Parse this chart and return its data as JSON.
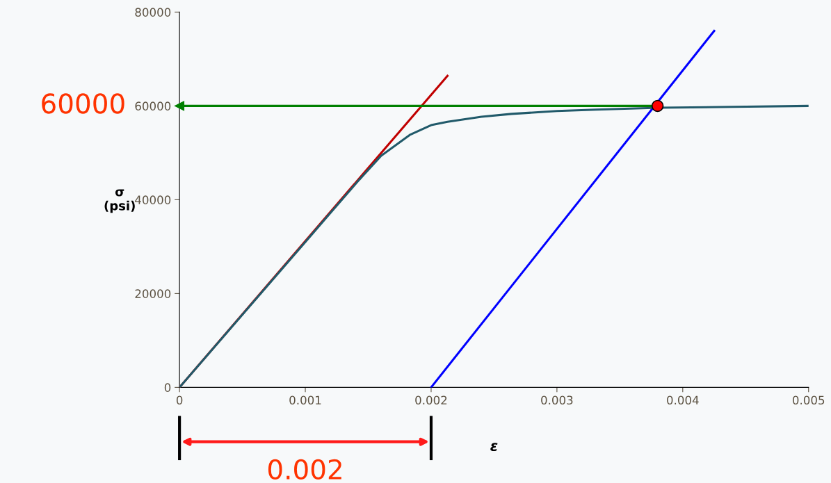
{
  "chart_data": {
    "type": "line",
    "xlabel": "ε",
    "ylabel": "σ\n(psi)",
    "xlim": [
      0,
      0.005
    ],
    "xticks": [
      0,
      0.001,
      0.002,
      0.003,
      0.004,
      0.005
    ],
    "ylim": [
      0,
      80000
    ],
    "yticks": [
      0,
      20000,
      40000,
      60000,
      80000
    ],
    "grid": false,
    "legend": false,
    "line_style": "solid",
    "series": [
      {
        "color": "#c00000",
        "marker": "none",
        "x": [
          0,
          0.00213
        ],
        "values": [
          0,
          66400
        ]
      },
      {
        "color": "#0000ff",
        "marker": "none",
        "x": [
          0.002,
          0.00425
        ],
        "values": [
          0,
          76000
        ]
      },
      {
        "color": "#215a6a",
        "marker": "none",
        "x": [
          0,
          0.0005,
          0.001,
          0.0012,
          0.00143,
          0.0016,
          0.00183,
          0.002,
          0.00213,
          0.0024,
          0.00264,
          0.003,
          0.00331,
          0.00381,
          0.0044,
          0.005
        ],
        "values": [
          0,
          15500,
          31000,
          37200,
          44300,
          49300,
          53800,
          55900,
          56600,
          57700,
          58300,
          58900,
          59200,
          59600,
          59800,
          60000
        ]
      },
      {
        "color": "#008000",
        "marker": "triangle",
        "x": [
          0,
          0.0038
        ],
        "values": [
          60000,
          60000
        ]
      },
      {
        "type": "scatter",
        "color": "#ff0000",
        "marker": "circle",
        "x": [
          0.0038
        ],
        "values": [
          60000
        ]
      }
    ],
    "annotations": [
      "60000",
      "0.002"
    ]
  }
}
